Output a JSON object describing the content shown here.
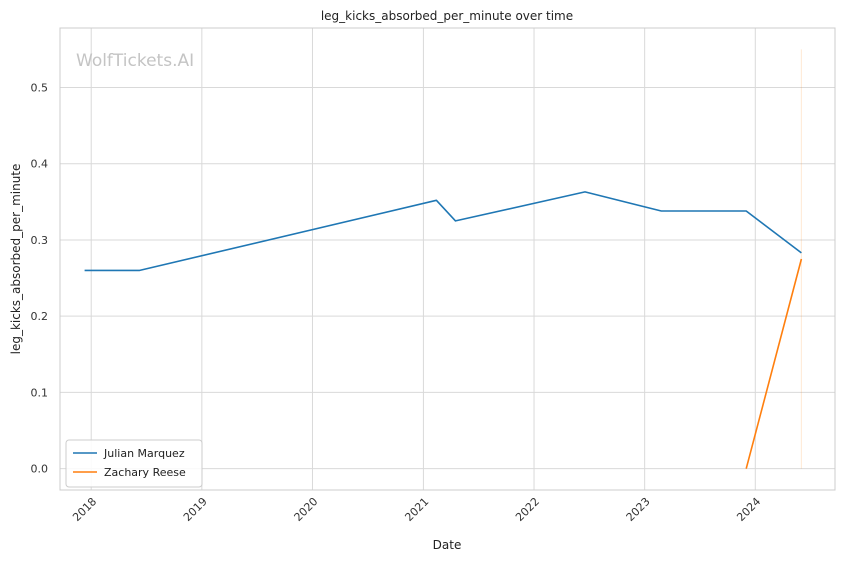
{
  "chart_data": {
    "type": "line",
    "title": "leg_kicks_absorbed_per_minute over time",
    "xlabel": "Date",
    "ylabel": "leg_kicks_absorbed_per_minute",
    "watermark": "WolfTickets.AI",
    "x_ticks": [
      "2018",
      "2019",
      "2020",
      "2021",
      "2022",
      "2023",
      "2024"
    ],
    "y_ticks": [
      "0.0",
      "0.1",
      "0.2",
      "0.3",
      "0.4",
      "0.5"
    ],
    "xlim": [
      "2017-09-20",
      "2024-09-20"
    ],
    "ylim": [
      -0.028,
      0.578
    ],
    "grid": true,
    "legend_position": "lower-left",
    "series": [
      {
        "name": "Julian Marquez",
        "color": "#1f77b4",
        "points": [
          {
            "x": "2017-12-10",
            "y": 0.26
          },
          {
            "x": "2018-06-10",
            "y": 0.26
          },
          {
            "x": "2021-02-13",
            "y": 0.352
          },
          {
            "x": "2021-04-17",
            "y": 0.325
          },
          {
            "x": "2022-06-18",
            "y": 0.363
          },
          {
            "x": "2023-02-25",
            "y": 0.338
          },
          {
            "x": "2023-12-02",
            "y": 0.338
          },
          {
            "x": "2024-06-01",
            "y": 0.283
          }
        ]
      },
      {
        "name": "Zachary Reese",
        "color": "#ff7f0e",
        "points": [
          {
            "x": "2023-12-02",
            "y": 0.0
          },
          {
            "x": "2024-06-01",
            "y": 0.275
          }
        ]
      }
    ],
    "annotation_line": {
      "x": "2024-06-01",
      "y_range": [
        0.0,
        0.55
      ],
      "color": "#ff7f0e"
    }
  }
}
